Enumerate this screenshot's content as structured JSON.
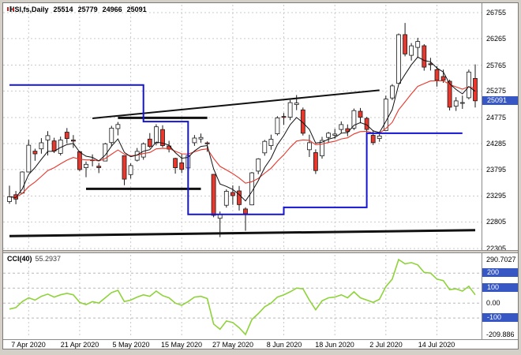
{
  "header": {
    "symbol_timeframe": "HSI,fs,Daily",
    "open": "25514",
    "high": "25779",
    "low": "24966",
    "close": "25091"
  },
  "colors": {
    "bull": "#ffffff",
    "bear": "#e8372c",
    "wick": "#1a1a1a",
    "grid": "#c9c9c9",
    "fast_ma": "#111111",
    "slow_ma": "#e8372c",
    "step_line": "#1414d2",
    "drawn": "#111111",
    "cci_line": "#8fd33a",
    "badge_bg": "#3657c4"
  },
  "chart_data": {
    "type": "candlestick",
    "symbol": "HSI,fs",
    "timeframe": "Daily",
    "price_axis": {
      "min": 22305,
      "max": 26755,
      "ticks": [
        26755,
        26265,
        25765,
        25275,
        24775,
        24285,
        23795,
        23295,
        22805,
        22305
      ],
      "current_price": 25091,
      "current_price_label": "25091"
    },
    "x_label_indices": [
      3,
      11,
      19,
      27,
      35,
      43,
      51,
      59,
      67
    ],
    "candle_format": [
      "date",
      "open",
      "high",
      "low",
      "close"
    ],
    "candles": [
      [
        "2 Apr 2020",
        23190,
        23490,
        23150,
        23280
      ],
      [
        "3 Apr 2020",
        23320,
        23390,
        23140,
        23236
      ],
      [
        "6 Apr 2020",
        23350,
        23760,
        23340,
        23749
      ],
      [
        "7 Apr 2020",
        23749,
        24356,
        23740,
        24253
      ],
      [
        "8 Apr 2020",
        24141,
        24187,
        23960,
        24091
      ],
      [
        "9 Apr 2020",
        24186,
        24387,
        24094,
        24300
      ],
      [
        "14 Apr 2020",
        24352,
        24518,
        24059,
        24435
      ],
      [
        "15 Apr 2020",
        24335,
        24395,
        24106,
        24145
      ],
      [
        "16 Apr 2020",
        24101,
        24415,
        24059,
        24352
      ],
      [
        "17 Apr 2020",
        24500,
        24578,
        24291,
        24380
      ],
      [
        "20 Apr 2020",
        24351,
        24445,
        24202,
        24330
      ],
      [
        "21 Apr 2020",
        24133,
        24145,
        23766,
        23794
      ],
      [
        "22 Apr 2020",
        23830,
        23947,
        23650,
        23893
      ],
      [
        "23 Apr 2020",
        23963,
        24081,
        23855,
        23977
      ],
      [
        "24 Apr 2020",
        23858,
        23918,
        23728,
        23831
      ],
      [
        "27 Apr 2020",
        23956,
        24299,
        23950,
        24280
      ],
      [
        "28 Apr 2020",
        24304,
        24619,
        24232,
        24576
      ],
      [
        "29 Apr 2020",
        24566,
        24692,
        24439,
        24644
      ],
      [
        "4 May 2020",
        24057,
        24057,
        23500,
        23614
      ],
      [
        "5 May 2020",
        23700,
        23911,
        23623,
        23869
      ],
      [
        "6 May 2020",
        23971,
        24201,
        23947,
        24137
      ],
      [
        "7 May 2020",
        24030,
        24306,
        23980,
        24280
      ],
      [
        "8 May 2020",
        24369,
        24482,
        24200,
        24230
      ],
      [
        "11 May 2020",
        24300,
        24649,
        24250,
        24602
      ],
      [
        "12 May 2020",
        24549,
        24631,
        24210,
        24246
      ],
      [
        "13 May 2020",
        24240,
        24336,
        24118,
        24180
      ],
      [
        "14 May 2020",
        24005,
        24016,
        23717,
        23830
      ],
      [
        "15 May 2020",
        23922,
        24083,
        23728,
        23797
      ],
      [
        "18 May 2020",
        23824,
        24116,
        23682,
        24058
      ],
      [
        "19 May 2020",
        24300,
        24445,
        24242,
        24388
      ],
      [
        "20 May 2020",
        24370,
        24475,
        24301,
        24400
      ],
      [
        "21 May 2020",
        24298,
        24325,
        24128,
        24280
      ],
      [
        "22 May 2020",
        23704,
        23712,
        22895,
        22930
      ],
      [
        "25 May 2020",
        22875,
        23003,
        22520,
        22952
      ],
      [
        "26 May 2020",
        23120,
        23419,
        23076,
        23384
      ],
      [
        "27 May 2020",
        23361,
        23495,
        23130,
        23301
      ],
      [
        "28 May 2020",
        23391,
        23485,
        23021,
        23132
      ],
      [
        "29 May 2020",
        23050,
        23082,
        22640,
        22961
      ],
      [
        "1 Jun 2020",
        23128,
        23748,
        23120,
        23732
      ],
      [
        "2 Jun 2020",
        23766,
        24009,
        23707,
        23996
      ],
      [
        "3 Jun 2020",
        24108,
        24355,
        24055,
        24326
      ],
      [
        "4 Jun 2020",
        24245,
        24452,
        24168,
        24366
      ],
      [
        "5 Jun 2020",
        24470,
        24801,
        24437,
        24770
      ],
      [
        "8 Jun 2020",
        24796,
        24860,
        24636,
        24776
      ],
      [
        "9 Jun 2020",
        24783,
        25107,
        24726,
        25057
      ],
      [
        "10 Jun 2020",
        25020,
        25200,
        24916,
        25049
      ],
      [
        "11 Jun 2020",
        24920,
        24965,
        24436,
        24480
      ],
      [
        "12 Jun 2020",
        24169,
        24452,
        24032,
        24301
      ],
      [
        "15 Jun 2020",
        24115,
        24176,
        23712,
        23776
      ],
      [
        "16 Jun 2020",
        24053,
        24411,
        24000,
        24344
      ],
      [
        "17 Jun 2020",
        24400,
        24505,
        24297,
        24481
      ],
      [
        "18 Jun 2020",
        24440,
        24562,
        24377,
        24464
      ],
      [
        "19 Jun 2020",
        24550,
        24702,
        24477,
        24643
      ],
      [
        "22 Jun 2020",
        24566,
        24646,
        24423,
        24511
      ],
      [
        "23 Jun 2020",
        24576,
        24945,
        24539,
        24907
      ],
      [
        "24 Jun 2020",
        24895,
        24956,
        24667,
        24781
      ],
      [
        "26 Jun 2020",
        24760,
        24788,
        24480,
        24550
      ],
      [
        "29 Jun 2020",
        24440,
        24537,
        24258,
        24301
      ],
      [
        "30 Jun 2020",
        24380,
        24505,
        24318,
        24427
      ],
      [
        "2 Jul 2020",
        24530,
        25190,
        24528,
        25124
      ],
      [
        "3 Jul 2020",
        25145,
        25407,
        25105,
        25373
      ],
      [
        "6 Jul 2020",
        25420,
        26360,
        25418,
        26339
      ],
      [
        "7 Jul 2020",
        26340,
        26560,
        25931,
        25975
      ],
      [
        "8 Jul 2020",
        25950,
        26180,
        25850,
        26129
      ],
      [
        "9 Jul 2020",
        26100,
        26280,
        25900,
        26211
      ],
      [
        "10 Jul 2020",
        26130,
        26160,
        25660,
        25727
      ],
      [
        "13 Jul 2020",
        25790,
        25902,
        25663,
        25772
      ],
      [
        "14 Jul 2020",
        25680,
        25745,
        25360,
        25477
      ],
      [
        "15 Jul 2020",
        25550,
        25680,
        25430,
        25481
      ],
      [
        "16 Jul 2020",
        25460,
        25490,
        24910,
        24971
      ],
      [
        "17 Jul 2020",
        24990,
        25160,
        24900,
        25089
      ],
      [
        "20 Jul 2020",
        25050,
        25190,
        24940,
        25058
      ],
      [
        "21 Jul 2020",
        25150,
        25680,
        25120,
        25635
      ],
      [
        "22 Jul 2020",
        25514,
        25779,
        24966,
        25091
      ]
    ],
    "overlays": {
      "fast_ma": {
        "period": 5,
        "color": "#111111"
      },
      "slow_ma": {
        "period": 13,
        "color": "#e8372c"
      },
      "step_line": {
        "color": "#1414d2",
        "segments": [
          {
            "from_index": 0,
            "to_index": 21,
            "price": 25390
          },
          {
            "from_index": 21,
            "to_index": 28,
            "price": 24700
          },
          {
            "from_index": 28,
            "to_index": 43,
            "price": 22950
          },
          {
            "from_index": 43,
            "to_index": 56,
            "price": 23080
          },
          {
            "from_index": 56,
            "to_index": 71,
            "price": 24480
          }
        ]
      },
      "drawn_lines": [
        {
          "name": "rising-trendline",
          "from_index": 13,
          "from_price": 24760,
          "to_index": 58,
          "to_price": 25290,
          "width": 2
        },
        {
          "name": "resistance-level",
          "from_index": 17,
          "from_price": 24770,
          "to_index": 31,
          "to_price": 24770,
          "width": 3
        },
        {
          "name": "support-level",
          "from_index": 12,
          "from_price": 23430,
          "to_index": 30,
          "to_price": 23430,
          "width": 3
        },
        {
          "name": "long-term-trendline",
          "from_index": 0,
          "from_price": 22540,
          "to_index": 73,
          "to_price": 22650,
          "width": 3
        }
      ]
    },
    "indicator": {
      "name": "CCI(40)",
      "value": "55.2937",
      "color": "#8fd33a",
      "scale_max": 290.7027,
      "scale_min": -209.886,
      "scale_labels": [
        {
          "text": "290.7027",
          "value": 290.7027
        },
        {
          "text": "0.00",
          "value": 0
        },
        {
          "text": "-209.886",
          "value": -209.886
        }
      ],
      "level_badges": [
        {
          "text": "200",
          "value": 200
        },
        {
          "text": "100",
          "value": 100
        },
        {
          "text": "-100",
          "value": -100
        }
      ],
      "values": [
        -40,
        -30,
        10,
        35,
        20,
        45,
        60,
        40,
        55,
        65,
        55,
        5,
        -10,
        10,
        0,
        35,
        70,
        85,
        10,
        20,
        40,
        55,
        45,
        80,
        50,
        35,
        0,
        -15,
        10,
        40,
        45,
        30,
        -140,
        -175,
        -120,
        -130,
        -165,
        -209.886,
        -110,
        -70,
        -25,
        0,
        40,
        55,
        75,
        100,
        95,
        20,
        -45,
        15,
        35,
        40,
        55,
        35,
        75,
        35,
        20,
        5,
        25,
        110,
        160,
        290.7027,
        262,
        270,
        255,
        205,
        200,
        160,
        150,
        90,
        95,
        80,
        112,
        55.2937
      ]
    }
  }
}
